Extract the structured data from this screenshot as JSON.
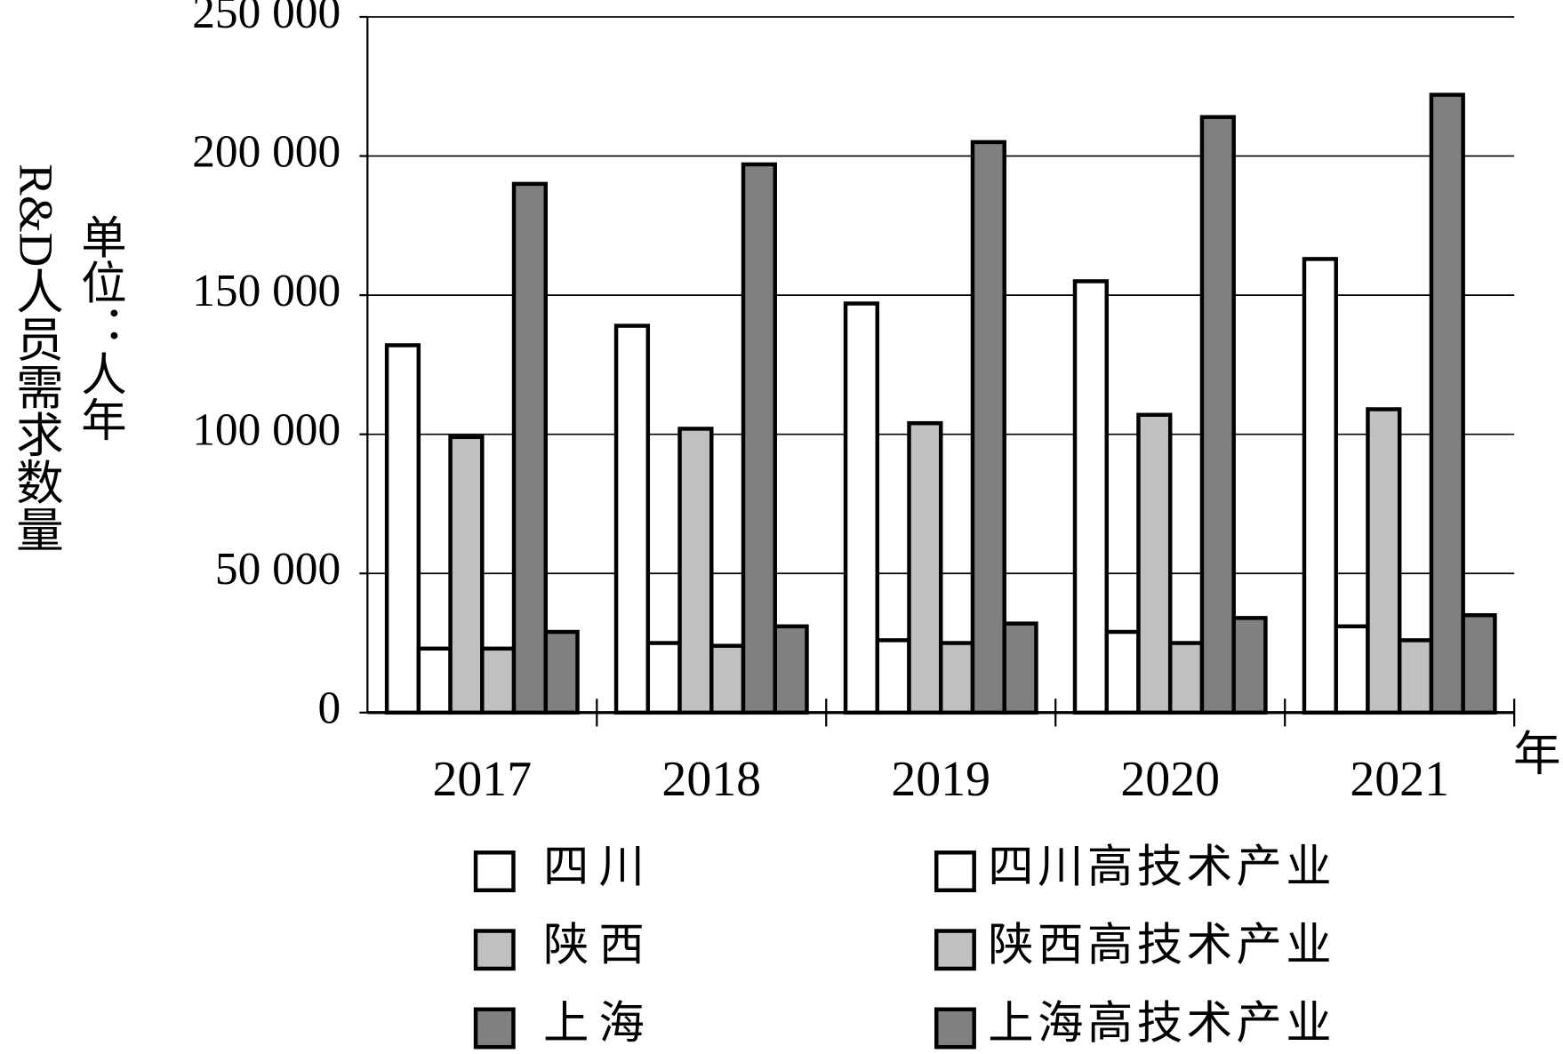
{
  "chart_data": {
    "type": "bar",
    "y_label": "R&D人员需求数量",
    "unit": "单位：人年",
    "x_label": "年",
    "categories": [
      "2017",
      "2018",
      "2019",
      "2020",
      "2021"
    ],
    "series": [
      {
        "name": "四川",
        "color": "#ffffff",
        "values": [
          132000,
          139000,
          147000,
          155000,
          163000
        ]
      },
      {
        "name": "四川高技术产业",
        "color": "#ffffff",
        "values": [
          23000,
          25000,
          26000,
          29000,
          31000
        ]
      },
      {
        "name": "陕西",
        "color": "#c0c0c0",
        "values": [
          99000,
          102000,
          104000,
          107000,
          109000
        ]
      },
      {
        "name": "陕西高技术产业",
        "color": "#c0c0c0",
        "values": [
          23000,
          24000,
          25000,
          25000,
          26000
        ]
      },
      {
        "name": "上海",
        "color": "#808080",
        "values": [
          190000,
          197000,
          205000,
          214000,
          222000
        ]
      },
      {
        "name": "上海高技术产业",
        "color": "#808080",
        "values": [
          29000,
          31000,
          32000,
          34000,
          35000
        ]
      }
    ],
    "ylim": [
      0,
      250000
    ],
    "yticks": [
      0,
      {
        "value": 50000,
        "label": "50 000"
      },
      {
        "value": 100000,
        "label": "100 000"
      },
      {
        "value": 150000,
        "label": "150 000"
      },
      {
        "value": 200000,
        "label": "200 000"
      },
      {
        "value": 250000,
        "label": "250 000"
      }
    ],
    "grid": true
  }
}
